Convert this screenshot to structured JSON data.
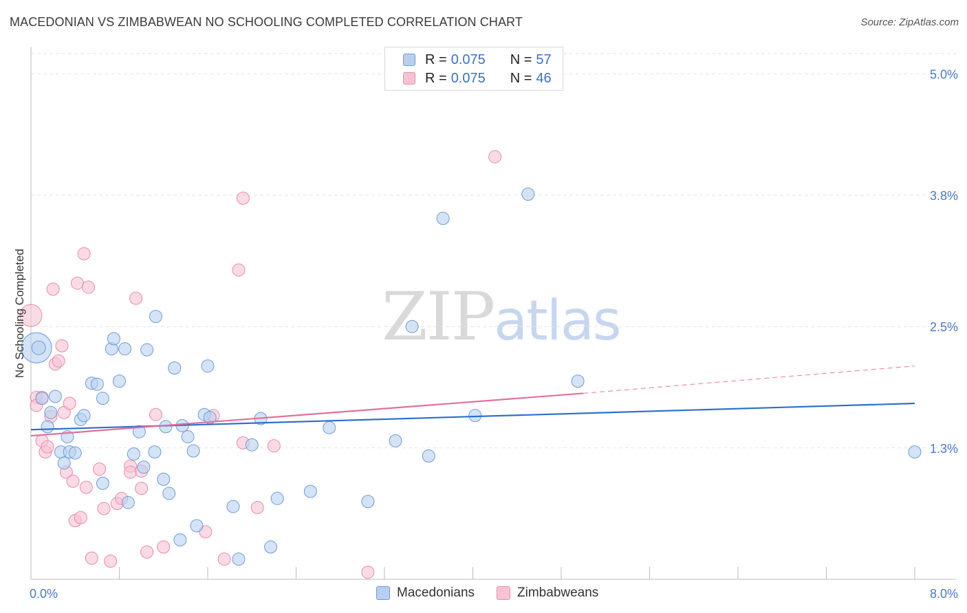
{
  "title": "MACEDONIAN VS ZIMBABWEAN NO SCHOOLING COMPLETED CORRELATION CHART",
  "source": "Source: ZipAtlas.com",
  "watermark": {
    "zip": "ZIP",
    "atlas": "atlas"
  },
  "legend": {
    "rows": [
      {
        "r_label": "R = ",
        "r_value": "0.075",
        "n_label": "N = ",
        "n_value": "57"
      },
      {
        "r_label": "R = ",
        "r_value": "0.075",
        "n_label": "N = ",
        "n_value": "46"
      }
    ]
  },
  "bottom_legend": [
    "Macedonians",
    "Zimbabweans"
  ],
  "colors": {
    "blue_fill": "#b8d0f0",
    "blue_stroke": "#6f9ad6",
    "blue_line": "#2c6fcc",
    "pink_fill": "#f7c3d3",
    "pink_stroke": "#e88aa8",
    "pink_line": "#e0709a",
    "grid": "#e3e3e3",
    "tick_text": "#4a78c2"
  },
  "chart_data": {
    "type": "scatter",
    "title": "MACEDONIAN VS ZIMBABWEAN NO SCHOOLING COMPLETED CORRELATION CHART",
    "xlabel": "",
    "ylabel": "No Schooling Completed",
    "xlim": [
      0.0,
      8.0
    ],
    "ylim": [
      0.0,
      5.2
    ],
    "x_tick_labels": [
      "0.0%",
      "8.0%"
    ],
    "y_ticks": [
      1.3,
      2.5,
      3.8,
      5.0
    ],
    "y_tick_labels": [
      "1.3%",
      "2.5%",
      "3.8%",
      "5.0%"
    ],
    "legend_position": "top-center",
    "series": [
      {
        "name": "Macedonians",
        "R": 0.075,
        "N": 57,
        "trend": {
          "x0": 0.0,
          "y0": 1.48,
          "x1": 8.0,
          "y1": 1.74
        },
        "points": [
          [
            0.05,
            2.29,
            22
          ],
          [
            0.07,
            2.29,
            10
          ],
          [
            0.1,
            1.79,
            9
          ],
          [
            0.15,
            1.51,
            9
          ],
          [
            0.18,
            1.65,
            9
          ],
          [
            0.22,
            1.81,
            9
          ],
          [
            0.27,
            1.26,
            9
          ],
          [
            0.3,
            1.15,
            9
          ],
          [
            0.33,
            1.41,
            9
          ],
          [
            0.35,
            1.26,
            9
          ],
          [
            0.4,
            1.25,
            9
          ],
          [
            0.45,
            1.58,
            9
          ],
          [
            0.48,
            1.62,
            9
          ],
          [
            0.55,
            1.94,
            9
          ],
          [
            0.6,
            1.93,
            9
          ],
          [
            0.65,
            1.79,
            9
          ],
          [
            0.73,
            2.28,
            9
          ],
          [
            0.75,
            2.38,
            9
          ],
          [
            0.8,
            1.96,
            9
          ],
          [
            0.85,
            2.28,
            9
          ],
          [
            0.65,
            0.95,
            9
          ],
          [
            0.88,
            0.76,
            9
          ],
          [
            0.93,
            1.24,
            9
          ],
          [
            0.98,
            1.46,
            9
          ],
          [
            1.02,
            1.11,
            9
          ],
          [
            1.05,
            2.27,
            9
          ],
          [
            1.12,
            1.26,
            9
          ],
          [
            1.13,
            2.6,
            9
          ],
          [
            1.2,
            0.99,
            9
          ],
          [
            1.22,
            1.51,
            9
          ],
          [
            1.25,
            0.85,
            9
          ],
          [
            1.3,
            2.09,
            9
          ],
          [
            1.35,
            0.39,
            9
          ],
          [
            1.37,
            1.52,
            9
          ],
          [
            1.42,
            1.41,
            9
          ],
          [
            1.47,
            1.27,
            9
          ],
          [
            1.5,
            0.53,
            9
          ],
          [
            1.57,
            1.63,
            9
          ],
          [
            1.6,
            2.11,
            9
          ],
          [
            1.62,
            1.6,
            9
          ],
          [
            1.83,
            0.72,
            9
          ],
          [
            1.88,
            0.2,
            9
          ],
          [
            2.0,
            1.33,
            9
          ],
          [
            2.08,
            1.59,
            9
          ],
          [
            2.17,
            0.32,
            9
          ],
          [
            2.23,
            0.8,
            9
          ],
          [
            2.53,
            0.87,
            9
          ],
          [
            2.7,
            1.5,
            9
          ],
          [
            3.05,
            0.77,
            9
          ],
          [
            3.3,
            1.37,
            9
          ],
          [
            3.45,
            2.5,
            9
          ],
          [
            3.6,
            1.22,
            9
          ],
          [
            3.73,
            3.57,
            9
          ],
          [
            4.02,
            1.62,
            9
          ],
          [
            4.5,
            3.81,
            9
          ],
          [
            4.95,
            1.96,
            9
          ],
          [
            8.0,
            1.26,
            9
          ]
        ]
      },
      {
        "name": "Zimbabweans",
        "R": 0.075,
        "N": 46,
        "trend": {
          "x0": 0.0,
          "y0": 1.42,
          "x1": 5.0,
          "y1": 1.84,
          "dash_x1": 8.0,
          "dash_y1": 2.11
        },
        "points": [
          [
            0.0,
            2.61,
            16
          ],
          [
            0.05,
            1.8,
            9
          ],
          [
            0.05,
            1.72,
            9
          ],
          [
            0.1,
            1.8,
            9
          ],
          [
            0.1,
            1.37,
            9
          ],
          [
            0.13,
            1.26,
            9
          ],
          [
            0.15,
            1.31,
            9
          ],
          [
            0.18,
            1.61,
            9
          ],
          [
            0.2,
            2.87,
            9
          ],
          [
            0.22,
            2.13,
            9
          ],
          [
            0.25,
            2.16,
            9
          ],
          [
            0.28,
            2.31,
            9
          ],
          [
            0.3,
            1.65,
            9
          ],
          [
            0.32,
            1.06,
            9
          ],
          [
            0.35,
            1.74,
            9
          ],
          [
            0.38,
            0.97,
            9
          ],
          [
            0.4,
            0.58,
            9
          ],
          [
            0.42,
            2.93,
            9
          ],
          [
            0.45,
            0.61,
            9
          ],
          [
            0.48,
            3.22,
            9
          ],
          [
            0.5,
            0.91,
            9
          ],
          [
            0.52,
            2.89,
            9
          ],
          [
            0.55,
            0.21,
            9
          ],
          [
            0.62,
            1.09,
            9
          ],
          [
            0.66,
            0.7,
            9
          ],
          [
            0.72,
            0.18,
            9
          ],
          [
            0.78,
            0.75,
            9
          ],
          [
            0.82,
            0.8,
            9
          ],
          [
            0.9,
            1.12,
            9
          ],
          [
            0.9,
            1.06,
            9
          ],
          [
            0.95,
            2.78,
            9
          ],
          [
            1.0,
            1.07,
            9
          ],
          [
            1.0,
            0.9,
            9
          ],
          [
            1.05,
            0.27,
            9
          ],
          [
            1.13,
            1.63,
            9
          ],
          [
            1.2,
            0.32,
            9
          ],
          [
            1.58,
            0.47,
            9
          ],
          [
            1.65,
            1.62,
            9
          ],
          [
            1.75,
            0.2,
            9
          ],
          [
            1.88,
            3.06,
            9
          ],
          [
            1.92,
            3.77,
            9
          ],
          [
            1.92,
            1.35,
            9
          ],
          [
            2.05,
            0.71,
            9
          ],
          [
            2.2,
            1.32,
            9
          ],
          [
            3.05,
            0.07,
            9
          ],
          [
            4.2,
            4.18,
            9
          ]
        ]
      }
    ]
  }
}
